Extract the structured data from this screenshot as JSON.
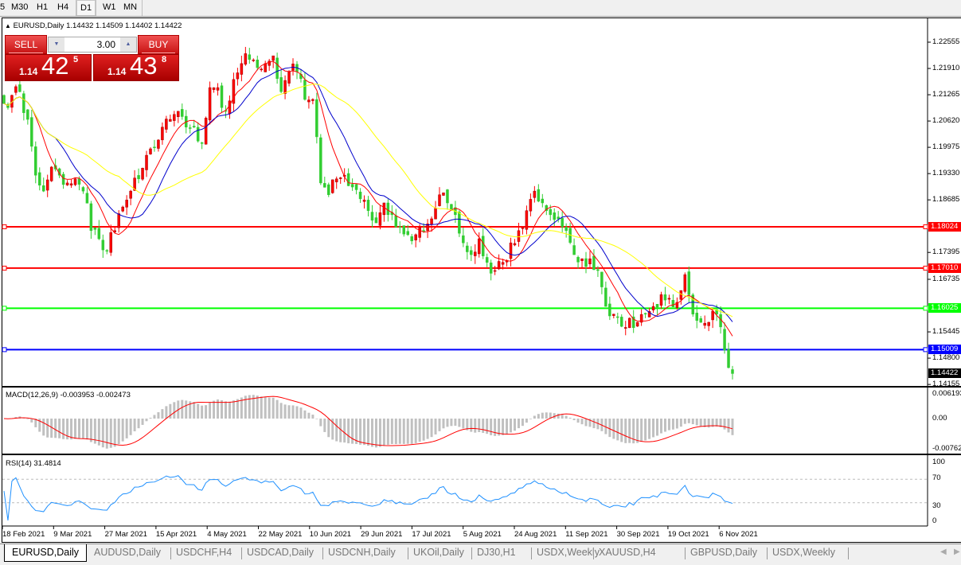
{
  "toolbar": {
    "timeframes": [
      "5",
      "M30",
      "H1",
      "H4",
      "D1",
      "W1",
      "MN"
    ],
    "active": "D1"
  },
  "chart": {
    "header": "EURUSD,Daily  1.14432 1.14509 1.14402 1.14422",
    "symbol": "EURUSD,Daily",
    "trade_panel": {
      "sell_label": "SELL",
      "buy_label": "BUY",
      "lot": "3.00",
      "sell_prefix": "1.14",
      "sell_big": "42",
      "sell_sup": "5",
      "buy_prefix": "1.14",
      "buy_big": "43",
      "buy_sup": "8"
    },
    "price_axis": [
      "1.22555",
      "1.21910",
      "1.21265",
      "1.20620",
      "1.19975",
      "1.19330",
      "1.18685",
      "1.17395",
      "1.16735",
      "1.15445",
      "1.14800",
      "1.14155"
    ],
    "current_price": "1.14422",
    "levels": [
      {
        "price": "1.18024",
        "color": "#ff0000"
      },
      {
        "price": "1.17010",
        "color": "#ff0000"
      },
      {
        "price": "1.16025",
        "color": "#00ff00"
      },
      {
        "price": "1.15009",
        "color": "#0000ff"
      }
    ],
    "macd": {
      "label": "MACD(12,26,9) -0.003953 -0.002473",
      "axis": [
        "0.006193",
        "0.00",
        "-0.007621"
      ]
    },
    "rsi": {
      "label": "RSI(14) 31.4814",
      "axis": [
        "100",
        "70",
        "30",
        "0"
      ]
    },
    "dates": [
      "18 Feb 2021",
      "9 Mar 2021",
      "27 Mar 2021",
      "15 Apr 2021",
      "4 May 2021",
      "22 May 2021",
      "10 Jun 2021",
      "29 Jun 2021",
      "17 Jul 2021",
      "5 Aug 2021",
      "24 Aug 2021",
      "11 Sep 2021",
      "30 Sep 2021",
      "19 Oct 2021",
      "6 Nov 2021"
    ],
    "colors": {
      "bull": "#ff0000",
      "bear": "#32cd32",
      "ma_fast": "#ff0000",
      "ma_mid": "#0000cc",
      "ma_slow": "#ffff00",
      "macd_hist": "#c0c0c0",
      "macd_signal": "#ff0000",
      "rsi": "#1e90ff"
    }
  },
  "chart_data": {
    "type": "candlestick",
    "symbol": "EURUSD",
    "timeframe": "Daily",
    "closes": [
      1.2105,
      1.2125,
      1.2134,
      1.2066,
      1.1929,
      1.189,
      1.1949,
      1.1929,
      1.191,
      1.192,
      1.189,
      1.1793,
      1.1773,
      1.1744,
      1.1793,
      1.1851,
      1.189,
      1.192,
      1.1978,
      1.1998,
      1.2047,
      1.2066,
      1.2086,
      1.2047,
      1.2047,
      1.2008,
      1.2144,
      1.2144,
      1.2086,
      1.2164,
      1.2203,
      1.2213,
      1.2193,
      1.2203,
      1.2222,
      1.2134,
      1.2183,
      1.2183,
      1.2115,
      1.2115,
      1.191,
      1.1881,
      1.192,
      1.1929,
      1.19,
      1.1871,
      1.1842,
      1.1812,
      1.1861,
      1.1832,
      1.1802,
      1.1783,
      1.1783,
      1.1793,
      1.1822,
      1.1881,
      1.1861,
      1.1832,
      1.1763,
      1.1734,
      1.1773,
      1.1715,
      1.1695,
      1.1715,
      1.1763,
      1.1793,
      1.1842,
      1.189,
      1.1861,
      1.1832,
      1.1822,
      1.1793,
      1.1734,
      1.1724,
      1.1724,
      1.1695,
      1.1607,
      1.1588,
      1.1558,
      1.1578,
      1.1568,
      1.1588,
      1.1607,
      1.1636,
      1.1627,
      1.1617,
      1.1685,
      1.1588,
      1.1568,
      1.1568,
      1.1588,
      1.15,
      1.14422
    ]
  },
  "tabs": [
    "EURUSD,Daily",
    "AUDUSD,Daily",
    "USDCHF,H4",
    "USDCAD,Daily",
    "USDCNH,Daily",
    "UKOil,Daily",
    "DJ30,H1",
    "USDX,Weekly",
    "XAUUSD,H4",
    "GBPUSD,Daily",
    "USDX,Weekly"
  ]
}
